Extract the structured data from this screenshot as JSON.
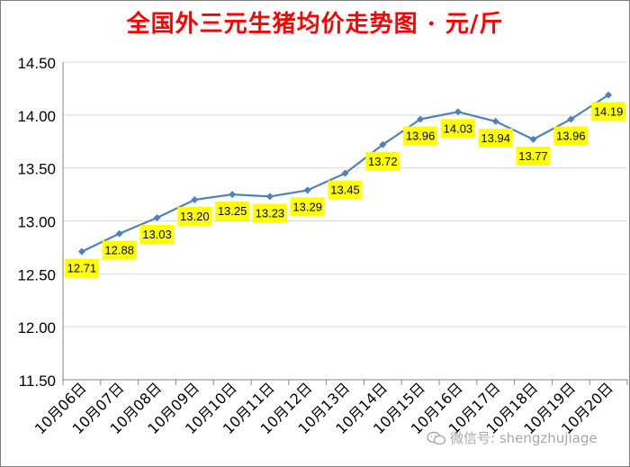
{
  "chart_data": {
    "type": "line",
    "title": "全国外三元生猪均价走势图 · 元/斤",
    "categories": [
      "10月06日",
      "10月07日",
      "10月08日",
      "10月09日",
      "10月10日",
      "10月11日",
      "10月12日",
      "10月13日",
      "10月14日",
      "10月15日",
      "10月16日",
      "10月17日",
      "10月18日",
      "10月19日",
      "10月20日"
    ],
    "values": [
      12.71,
      12.88,
      13.03,
      13.2,
      13.25,
      13.23,
      13.29,
      13.45,
      13.72,
      13.96,
      14.03,
      13.94,
      13.77,
      13.96,
      14.19
    ],
    "value_labels": [
      "12.71",
      "12.88",
      "13.03",
      "13.20",
      "13.25",
      "13.23",
      "13.29",
      "13.45",
      "13.72",
      "13.96",
      "14.03",
      "13.94",
      "13.77",
      "13.96",
      "14.19"
    ],
    "ylim": [
      11.5,
      14.5
    ],
    "yticks": [
      "11.50",
      "12.00",
      "12.50",
      "13.00",
      "13.50",
      "14.00",
      "14.50"
    ],
    "grid": true,
    "legend": "none",
    "colors": {
      "line": "#4f81bd",
      "label_bg": "#ffff00",
      "title": "#ff0000"
    }
  },
  "watermark": {
    "text": "微信号: shengzhujiage",
    "icon": "wechat-icon"
  }
}
